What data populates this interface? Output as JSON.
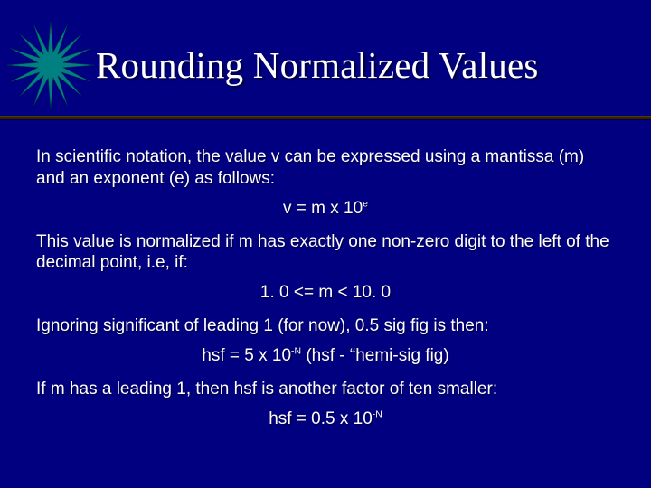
{
  "slide": {
    "background_color": "#000080",
    "text_color": "#ffffff",
    "title": "Rounding Normalized Values",
    "title_font": "Times New Roman",
    "title_fontsize": 41,
    "title_color": "#ffffff",
    "body_font": "Arial",
    "body_fontsize": 19,
    "divider_color": "#402800",
    "star": {
      "spikes": 16,
      "outer_radius": 48,
      "inner_radius": 14,
      "fill": "#008080",
      "stroke": "#004040"
    },
    "p1": "In scientific notation, the value v can be expressed using a mantissa (m) and an exponent (e) as follows:",
    "f1_base": "v = m x 10",
    "f1_sup": "e",
    "p2": "This value is normalized if m has exactly one non-zero digit to the left of the decimal point, i.e, if:",
    "f2": "1. 0 <= m < 10. 0",
    "p3": "Ignoring significant of leading 1 (for now), 0.5 sig fig is then:",
    "f3_base": "hsf = 5 x 10",
    "f3_sup": "-N",
    "f3_tail": " (hsf - “hemi-sig fig)",
    "p4": "If m has a leading 1, then hsf is another factor of ten smaller:",
    "f4_base": "hsf = 0.5 x 10",
    "f4_sup": "-N"
  }
}
